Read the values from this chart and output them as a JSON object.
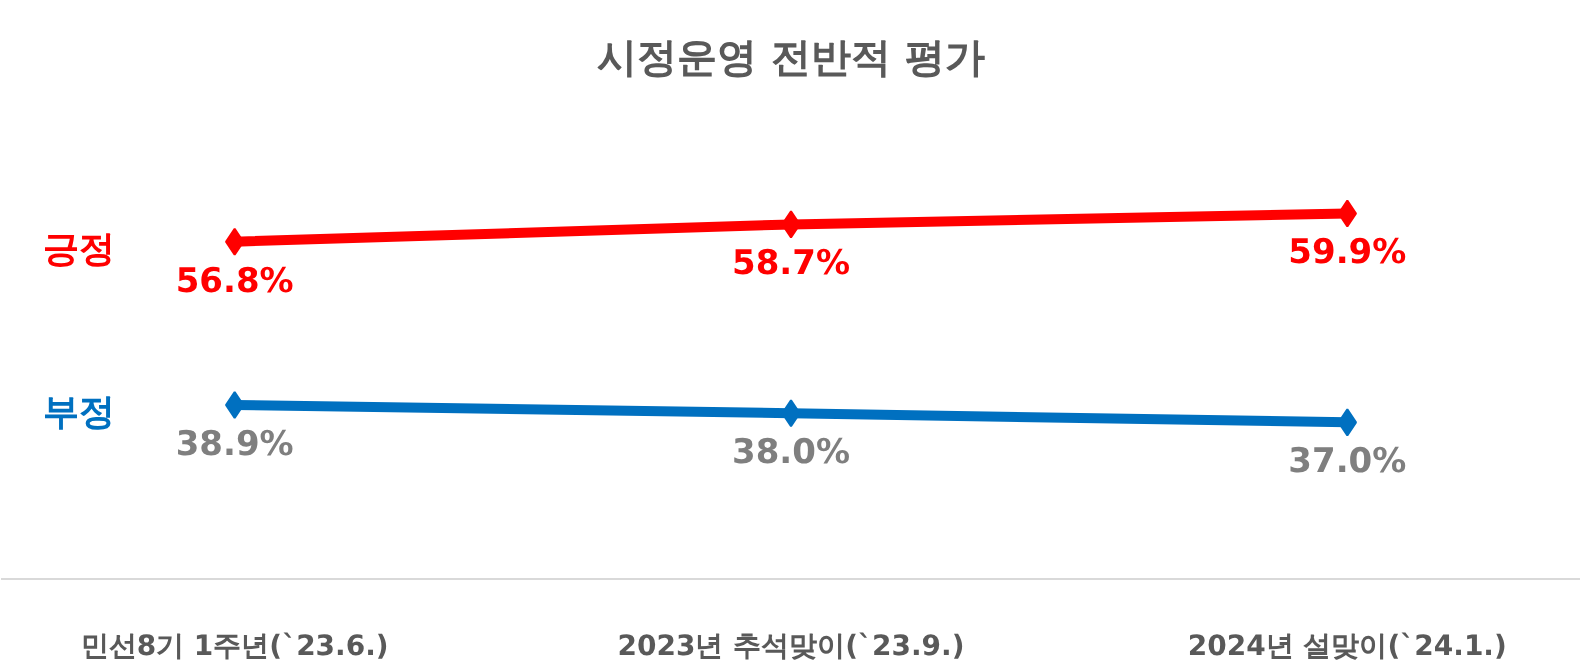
{
  "chart_data": {
    "type": "line",
    "title": "시정운영 전반적 평가",
    "categories": [
      "민선8기 1주년(`23.6.)",
      "2023년 추석맞이(`23.9.)",
      "2024년 설맞이(`24.1.)"
    ],
    "series": [
      {
        "name": "긍정",
        "color": "#ff0000",
        "values": [
          56.8,
          58.7,
          59.9
        ],
        "value_labels": [
          "56.8%",
          "58.7%",
          "59.9%"
        ]
      },
      {
        "name": "부정",
        "color": "#0070c0",
        "values": [
          38.9,
          38.0,
          37.0
        ],
        "value_labels": [
          "38.9%",
          "38.0%",
          "37.0%"
        ]
      }
    ],
    "tick_labels": "x",
    "marker": "diamond",
    "line_style": "solid"
  }
}
